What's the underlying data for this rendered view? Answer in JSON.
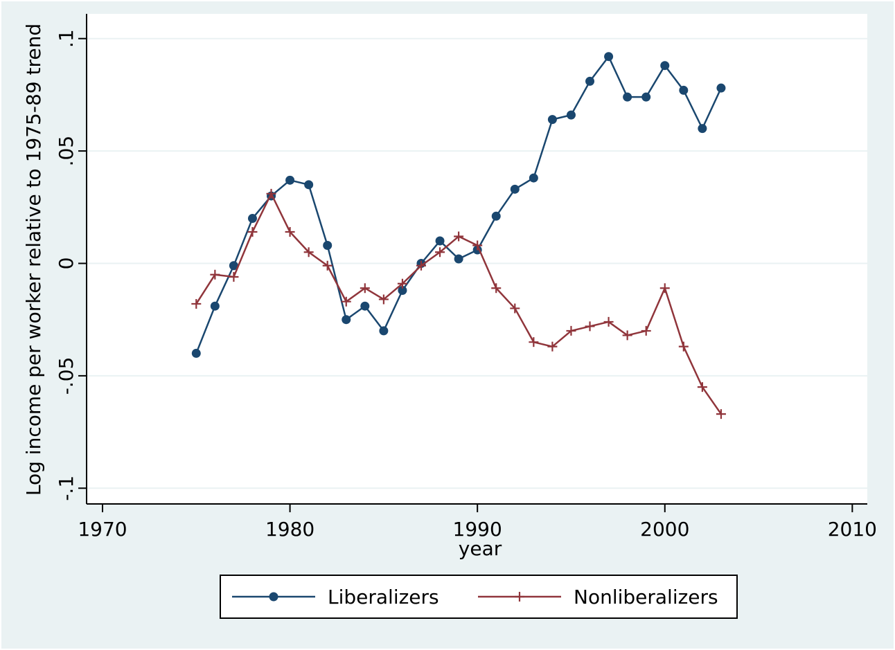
{
  "chart_data": {
    "type": "line",
    "x_label": "year",
    "y_label": "Log income per worker relative to 1975-89 trend",
    "x": [
      1975,
      1976,
      1977,
      1978,
      1979,
      1980,
      1981,
      1982,
      1983,
      1984,
      1985,
      1986,
      1987,
      1988,
      1989,
      1990,
      1991,
      1992,
      1993,
      1994,
      1995,
      1996,
      1997,
      1998,
      1999,
      2000,
      2001,
      2002,
      2003
    ],
    "series": [
      {
        "name": "Liberalizers",
        "color": "#1a476f",
        "marker": "circle",
        "values": [
          -0.04,
          -0.019,
          -0.001,
          0.02,
          0.03,
          0.037,
          0.035,
          0.008,
          -0.025,
          -0.019,
          -0.03,
          -0.012,
          0.0,
          0.01,
          0.002,
          0.006,
          0.021,
          0.033,
          0.038,
          0.064,
          0.066,
          0.081,
          0.092,
          0.074,
          0.074,
          0.088,
          0.077,
          0.06,
          0.078
        ]
      },
      {
        "name": "Nonliberalizers",
        "color": "#90353b",
        "marker": "plus",
        "values": [
          -0.018,
          -0.005,
          -0.006,
          0.014,
          0.031,
          0.014,
          0.005,
          -0.001,
          -0.017,
          -0.011,
          -0.016,
          -0.009,
          -0.001,
          0.005,
          0.012,
          0.008,
          -0.011,
          -0.02,
          -0.035,
          -0.037,
          -0.03,
          -0.028,
          -0.026,
          -0.032,
          -0.03,
          -0.011,
          -0.037,
          -0.055,
          -0.067
        ]
      }
    ],
    "xlim": [
      1969.15,
      2010.8
    ],
    "xticks": [
      1970,
      1980,
      1990,
      2000,
      2010
    ],
    "ylim": [
      -0.107,
      0.111
    ],
    "yticks": [
      {
        "value": -0.1,
        "label": "-.1"
      },
      {
        "value": -0.05,
        "label": "-.05"
      },
      0,
      {
        "value": 0.05,
        "label": ".05"
      },
      {
        "value": 0.1,
        "label": ".1"
      }
    ],
    "grid": true,
    "legend": "bottom"
  }
}
